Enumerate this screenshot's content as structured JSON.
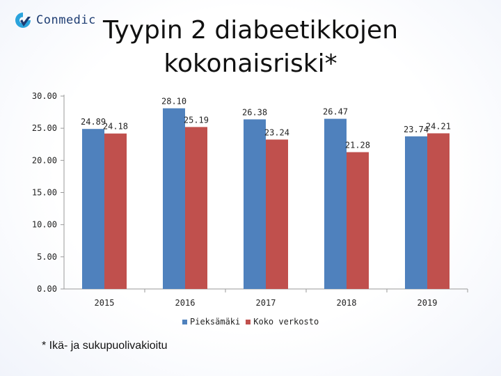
{
  "logo": {
    "text": "Conmedic"
  },
  "title": {
    "line1": "Tyypin 2 diabeetikkojen",
    "line2": "kokonaisriski*"
  },
  "footnote": "* Ikä- ja sukupuolivakioitu",
  "colors": {
    "series1": "#4f81bd",
    "series2": "#c0504d",
    "logo_blue": "#2aa3dc",
    "logo_dark": "#1d3c72"
  },
  "chart_data": {
    "type": "bar",
    "categories": [
      "2015",
      "2016",
      "2017",
      "2018",
      "2019"
    ],
    "series": [
      {
        "name": "Pieksämäki",
        "values": [
          24.89,
          28.1,
          26.38,
          26.47,
          23.74
        ],
        "labels": [
          "24.89",
          "28.10",
          "26.38",
          "26.47",
          "23.74"
        ]
      },
      {
        "name": "Koko verkosto",
        "values": [
          24.18,
          25.19,
          23.24,
          21.28,
          24.21
        ],
        "labels": [
          "24.18",
          "25.19",
          "23.24",
          "21.28",
          "24.21"
        ]
      }
    ],
    "y_ticks": [
      "0.00",
      "5.00",
      "10.00",
      "15.00",
      "20.00",
      "25.00",
      "30.00"
    ],
    "ylim": [
      0,
      30
    ],
    "legend_position": "bottom",
    "grid": false
  }
}
